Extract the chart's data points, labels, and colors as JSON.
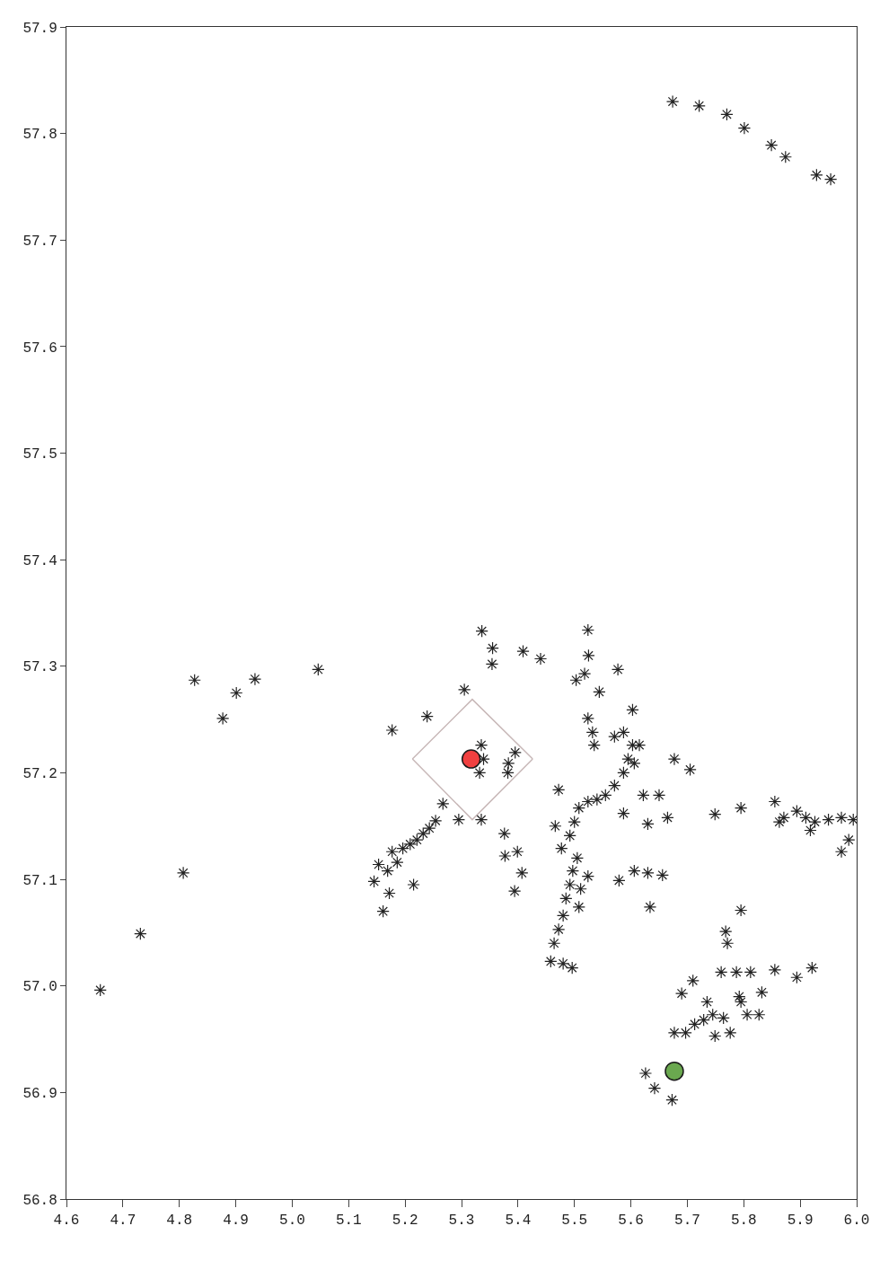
{
  "chart_data": {
    "type": "scatter",
    "xlim": [
      4.6,
      6.0
    ],
    "xticks": [
      4.6,
      4.7,
      4.8,
      4.9,
      {
        "value": 5.0,
        "label": "5.0"
      },
      5.1,
      5.2,
      5.3,
      5.4,
      5.5,
      5.6,
      5.7,
      5.8,
      5.9,
      {
        "value": 6.0,
        "label": "6.0"
      }
    ],
    "ylim": [
      56.8,
      57.9
    ],
    "yticks": [
      56.8,
      56.9,
      {
        "value": 57.0,
        "label": "57.0"
      },
      57.1,
      57.2,
      57.3,
      57.4,
      57.5,
      57.6,
      57.7,
      57.8,
      57.9
    ],
    "series": [
      {
        "type": "line",
        "marker": "none",
        "color": "#c8b8b8",
        "x": [
          5.213,
          5.319,
          5.426
        ],
        "values": [
          57.213,
          57.269,
          57.213
        ]
      },
      {
        "type": "line",
        "marker": "none",
        "color": "#c8b8b8",
        "x": [
          5.213,
          5.319,
          5.426
        ],
        "values": [
          57.213,
          57.156,
          57.213
        ]
      },
      {
        "marker": "cross",
        "color": "#222222",
        "x": [
          5.674,
          5.721,
          5.77,
          5.801,
          5.849,
          5.874,
          5.929,
          5.954,
          4.66,
          4.731,
          4.807,
          4.827,
          4.877,
          4.901,
          4.934,
          5.046,
          5.177,
          5.239,
          5.305,
          5.336,
          5.355,
          5.354,
          5.409,
          5.44,
          5.524,
          5.525,
          5.518,
          5.577,
          5.503,
          5.544,
          5.335,
          5.339,
          5.332,
          5.382,
          5.395,
          5.383,
          5.145,
          5.153,
          5.169,
          5.172,
          5.161,
          5.186,
          5.196,
          5.209,
          5.221,
          5.232,
          5.243,
          5.254,
          5.215,
          5.267,
          5.295,
          5.335,
          5.177,
          5.376,
          5.377,
          5.399,
          5.407,
          5.394,
          5.458,
          5.464,
          5.472,
          5.48,
          5.485,
          5.492,
          5.497,
          5.505,
          5.511,
          5.508,
          5.524,
          5.477,
          5.492,
          5.5,
          5.508,
          5.524,
          5.54,
          5.555,
          5.571,
          5.587,
          5.595,
          5.603,
          5.472,
          5.466,
          5.496,
          5.48,
          5.524,
          5.532,
          5.535,
          5.571,
          5.587,
          5.603,
          5.615,
          5.606,
          5.622,
          5.587,
          5.63,
          5.65,
          5.665,
          5.677,
          5.705,
          5.579,
          5.606,
          5.63,
          5.656,
          5.634,
          5.749,
          5.795,
          5.855,
          5.871,
          5.894,
          5.91,
          5.926,
          5.95,
          5.973,
          5.994,
          5.986,
          5.973,
          5.918,
          5.863,
          5.795,
          5.768,
          5.771,
          5.71,
          5.69,
          5.76,
          5.787,
          5.812,
          5.855,
          5.894,
          5.921,
          5.832,
          5.792,
          5.735,
          5.713,
          5.729,
          5.745,
          5.764,
          5.776,
          5.749,
          5.697,
          5.677,
          5.806,
          5.827,
          5.795,
          5.626,
          5.642,
          5.673
        ],
        "values": [
          57.83,
          57.826,
          57.818,
          57.805,
          57.789,
          57.778,
          57.761,
          57.757,
          56.996,
          57.049,
          57.106,
          57.287,
          57.251,
          57.275,
          57.288,
          57.297,
          57.24,
          57.253,
          57.278,
          57.333,
          57.317,
          57.302,
          57.314,
          57.307,
          57.334,
          57.31,
          57.293,
          57.297,
          57.287,
          57.276,
          57.226,
          57.213,
          57.2,
          57.2,
          57.219,
          57.209,
          57.098,
          57.114,
          57.108,
          57.087,
          57.07,
          57.116,
          57.129,
          57.133,
          57.137,
          57.143,
          57.148,
          57.155,
          57.095,
          57.171,
          57.156,
          57.156,
          57.126,
          57.143,
          57.122,
          57.126,
          57.106,
          57.089,
          57.023,
          57.04,
          57.053,
          57.066,
          57.082,
          57.095,
          57.108,
          57.12,
          57.091,
          57.074,
          57.103,
          57.129,
          57.141,
          57.154,
          57.167,
          57.173,
          57.175,
          57.179,
          57.188,
          57.2,
          57.213,
          57.226,
          57.184,
          57.15,
          57.017,
          57.021,
          57.251,
          57.238,
          57.226,
          57.234,
          57.238,
          57.259,
          57.226,
          57.209,
          57.179,
          57.162,
          57.152,
          57.179,
          57.158,
          57.213,
          57.203,
          57.099,
          57.108,
          57.106,
          57.104,
          57.074,
          57.161,
          57.167,
          57.173,
          57.158,
          57.164,
          57.158,
          57.154,
          57.156,
          57.158,
          57.156,
          57.137,
          57.126,
          57.146,
          57.154,
          57.071,
          57.051,
          57.04,
          57.005,
          56.993,
          57.013,
          57.013,
          57.013,
          57.015,
          57.008,
          57.017,
          56.994,
          56.99,
          56.985,
          56.964,
          56.968,
          56.973,
          56.97,
          56.956,
          56.953,
          56.956,
          56.956,
          56.973,
          56.973,
          56.985,
          56.918,
          56.904,
          56.893
        ]
      },
      {
        "marker": "circle",
        "color": "#f04040",
        "x": [
          5.317
        ],
        "values": [
          57.213
        ]
      },
      {
        "marker": "circle",
        "color": "#6aa84f",
        "x": [
          5.677
        ],
        "values": [
          56.92
        ]
      }
    ]
  }
}
